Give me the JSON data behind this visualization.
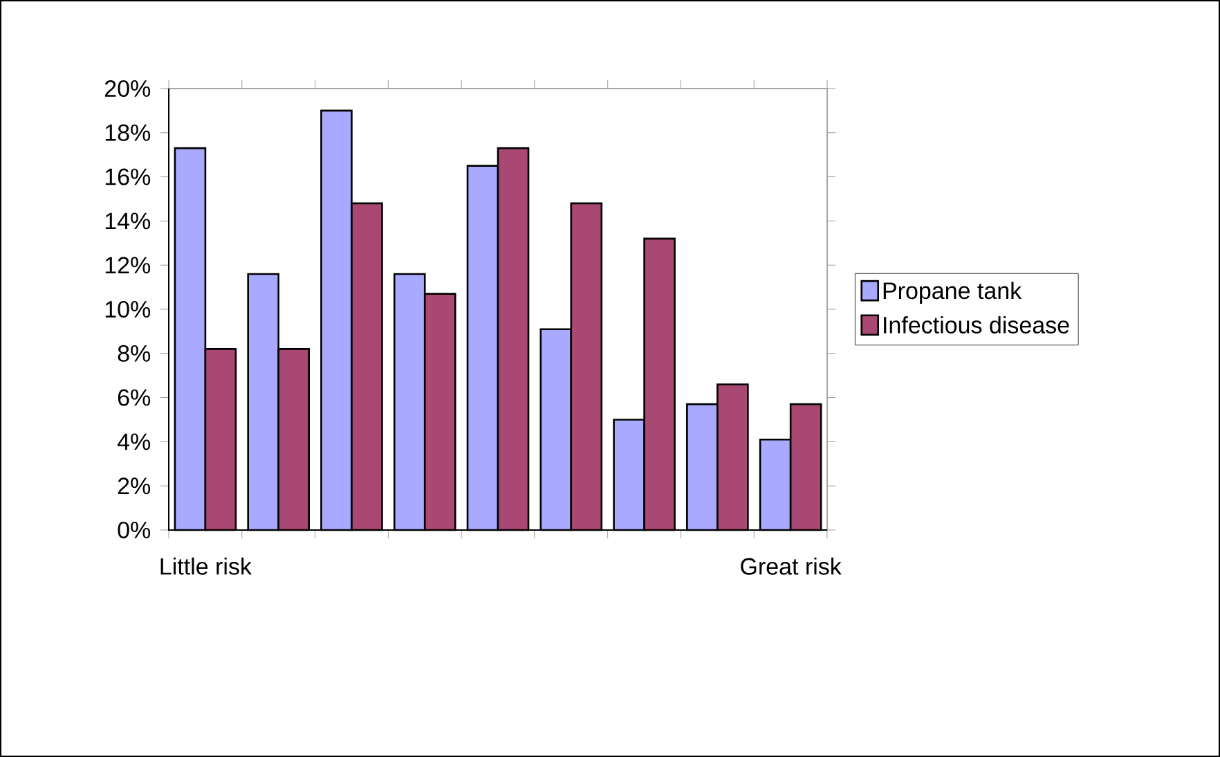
{
  "chart_data": {
    "type": "bar",
    "categories": [
      "Little risk",
      null,
      null,
      null,
      null,
      null,
      null,
      null,
      "Great risk"
    ],
    "series": [
      {
        "name": "Propane tank",
        "color": "#a9aaff",
        "values": [
          17.3,
          11.6,
          19.0,
          11.6,
          16.5,
          9.1,
          5.0,
          5.7,
          4.1
        ]
      },
      {
        "name": "Infectious disease",
        "color": "#a94872",
        "values": [
          8.2,
          8.2,
          14.8,
          10.7,
          17.3,
          14.8,
          13.2,
          6.6,
          5.7
        ]
      }
    ],
    "ylim": [
      0,
      20
    ],
    "yticks": [
      {
        "value": 0,
        "label": "0%"
      },
      {
        "value": 2,
        "label": "2%"
      },
      {
        "value": 4,
        "label": "4%"
      },
      {
        "value": 6,
        "label": "6%"
      },
      {
        "value": 8,
        "label": "8%"
      },
      {
        "value": 10,
        "label": "10%"
      },
      {
        "value": 12,
        "label": "12%"
      },
      {
        "value": 14,
        "label": "14%"
      },
      {
        "value": 16,
        "label": "16%"
      },
      {
        "value": 18,
        "label": "18%"
      },
      {
        "value": 20,
        "label": "20%"
      }
    ],
    "grid": false,
    "legend": "right"
  }
}
